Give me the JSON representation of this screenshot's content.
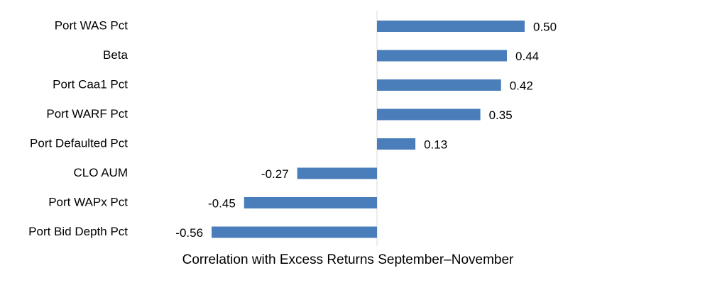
{
  "chart_data": {
    "type": "bar",
    "orientation": "horizontal",
    "x_label": "Correlation with Excess Returns September–November",
    "categories": [
      "Port WAS Pct",
      "Beta",
      "Port Caa1 Pct",
      "Port WARF Pct",
      "Port Defaulted Pct",
      "CLO AUM",
      "Port WAPx Pct",
      "Port Bid Depth Pct"
    ],
    "values": [
      0.5,
      0.44,
      0.42,
      0.35,
      0.13,
      -0.27,
      -0.45,
      -0.56
    ],
    "value_labels": [
      "0.50",
      "0.44",
      "0.42",
      "0.35",
      "0.13",
      "-0.27",
      "-0.45",
      "-0.56"
    ],
    "color": "#4a7ebb"
  }
}
